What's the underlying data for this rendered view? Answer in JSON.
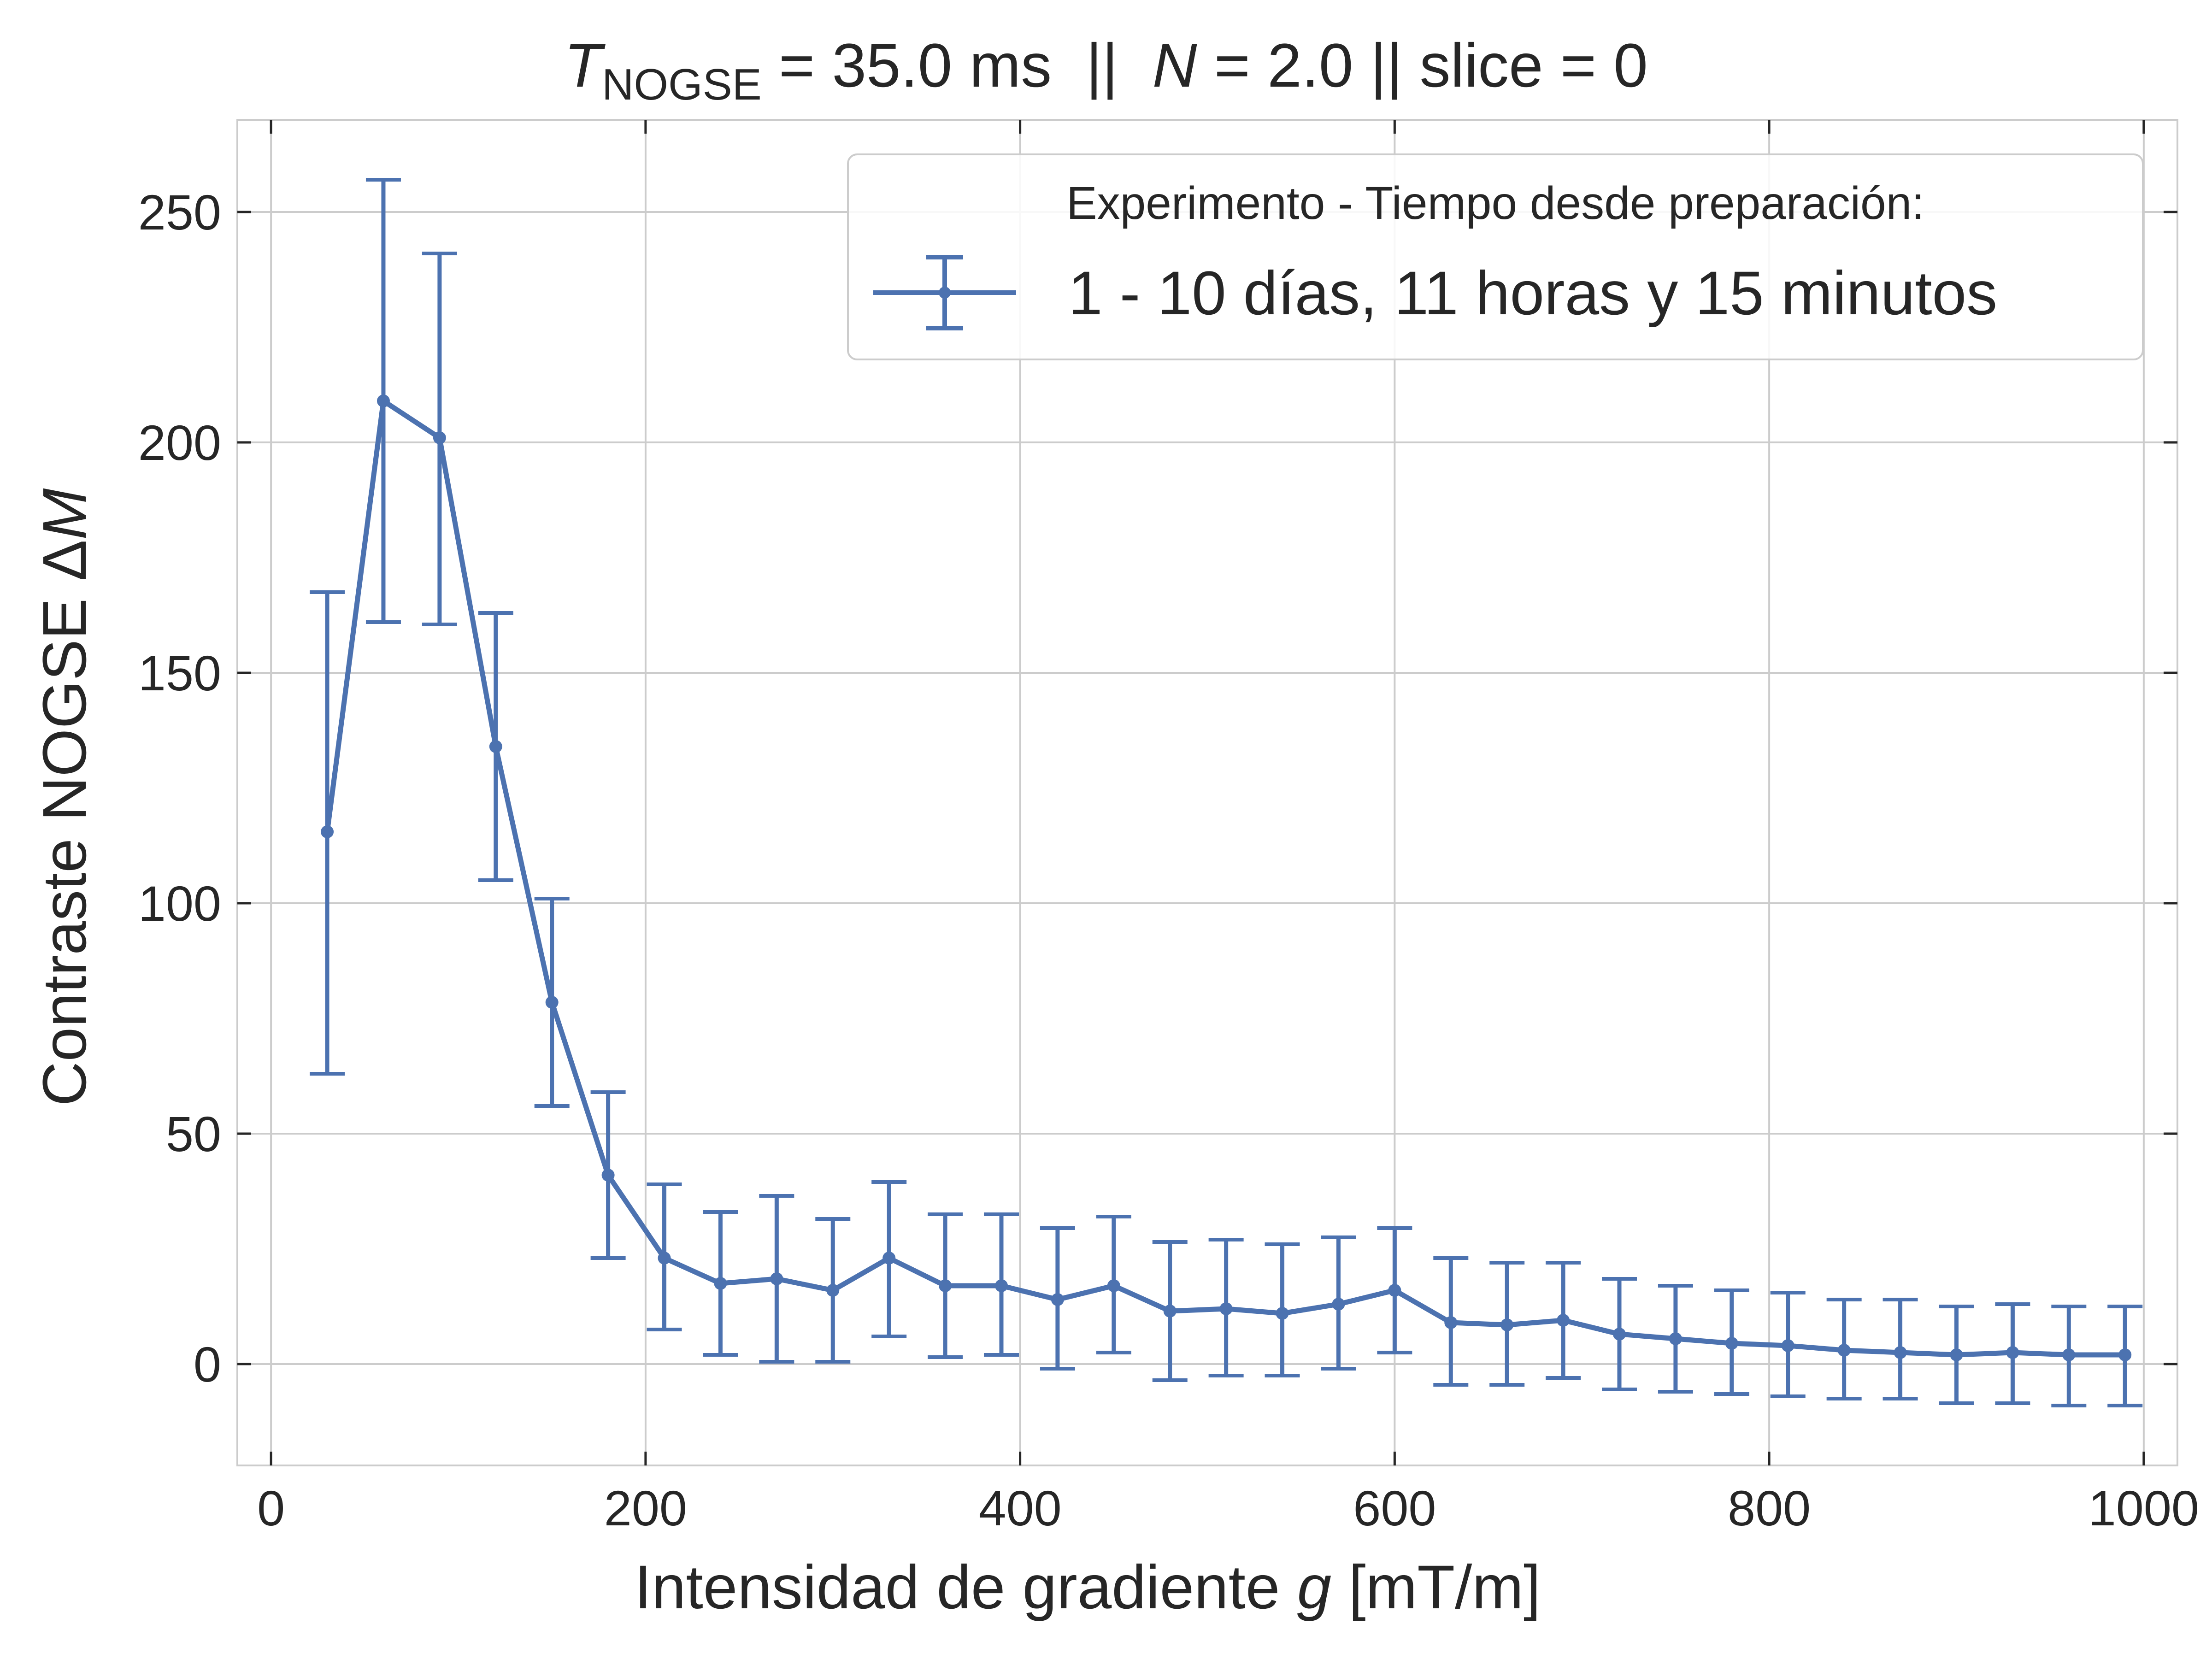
{
  "chart_data": {
    "type": "line",
    "title": {
      "symbol": "T",
      "subscript": "NOGSE",
      "rest_1": " = 35.0 ms  ||  ",
      "n_symbol": "N",
      "rest_2": " = 2.0 || slice = 0"
    },
    "xlabel": {
      "text": "Intensidad de gradiente ",
      "symbol": "g",
      "unit": " [mT/m]"
    },
    "ylabel": {
      "text": "Contraste NOGSE Δ",
      "symbol": "M"
    },
    "xlim": [
      -18,
      1018
    ],
    "ylim": [
      -22,
      270
    ],
    "xticks": [
      0,
      200,
      400,
      600,
      800,
      1000
    ],
    "yticks": [
      0,
      50,
      100,
      150,
      200,
      250
    ],
    "grid": true,
    "legend": {
      "title": "Experimento - Tiempo desde preparación:",
      "placement": "top-right"
    },
    "series": [
      {
        "name": "1 - 10 días, 11 horas y 15 minutos",
        "color": "#4c72b0",
        "x": [
          30,
          60,
          90,
          120,
          150,
          180,
          210,
          240,
          270,
          300,
          330,
          360,
          390,
          420,
          450,
          480,
          510,
          540,
          570,
          600,
          630,
          660,
          690,
          720,
          750,
          780,
          810,
          840,
          870,
          900,
          930,
          960,
          990
        ],
        "y": [
          115.5,
          209,
          201,
          134,
          78.5,
          41,
          23,
          17.5,
          18.5,
          16,
          23,
          17,
          17,
          14,
          17,
          11.5,
          12,
          11,
          13,
          16,
          9,
          8.5,
          9.5,
          6.5,
          5.5,
          4.5,
          4,
          3,
          2.5,
          2,
          2.5,
          2,
          2
        ],
        "err_low": [
          63,
          161,
          160.5,
          105,
          56,
          23,
          7.5,
          2,
          0.5,
          0.5,
          6,
          1.5,
          2,
          -1,
          2.5,
          -3.5,
          -2.5,
          -2.5,
          -1,
          2.5,
          -4.5,
          -4.5,
          -3,
          -5.5,
          -6,
          -6.5,
          -7,
          -7.5,
          -7.5,
          -8.5,
          -8.5,
          -9,
          -9
        ],
        "err_high": [
          167.5,
          257,
          241,
          163,
          101,
          59,
          39,
          33,
          36.5,
          31.5,
          39.5,
          32.5,
          32.5,
          29.5,
          32,
          26.5,
          27,
          26,
          27.5,
          29.5,
          23,
          22,
          22,
          18.5,
          17,
          16,
          15.5,
          14,
          14,
          12.5,
          13,
          12.5,
          12.5
        ]
      }
    ]
  }
}
